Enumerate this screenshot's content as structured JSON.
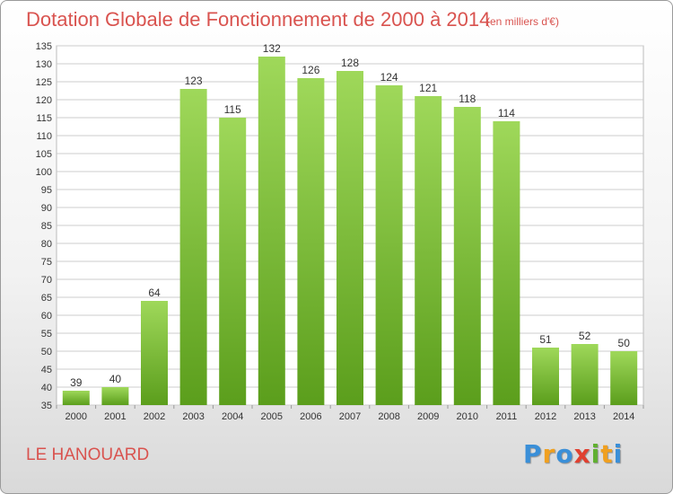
{
  "title": "Dotation Globale de Fonctionnement de 2000 à 2014",
  "subtitle": "(en milliers d'€)",
  "commune": "LE HANOUARD",
  "logo": [
    "P",
    "r",
    "o",
    "x",
    "i",
    "t",
    "i"
  ],
  "colors": {
    "title": "#d9534f",
    "bar_top": "#9fd85a",
    "bar_bottom": "#5b9e1c",
    "grid": "#cccccc",
    "axis_text": "#333333"
  },
  "chart_data": {
    "type": "bar",
    "categories": [
      "2000",
      "2001",
      "2002",
      "2003",
      "2004",
      "2005",
      "2006",
      "2007",
      "2008",
      "2009",
      "2010",
      "2011",
      "2012",
      "2013",
      "2014"
    ],
    "values": [
      39,
      40,
      64,
      123,
      115,
      132,
      126,
      128,
      124,
      121,
      118,
      114,
      51,
      52,
      50
    ],
    "ylim": [
      35,
      135
    ],
    "ytick_step": 5,
    "grid": true,
    "title": "Dotation Globale de Fonctionnement de 2000 à 2014",
    "xlabel": "",
    "ylabel": ""
  }
}
